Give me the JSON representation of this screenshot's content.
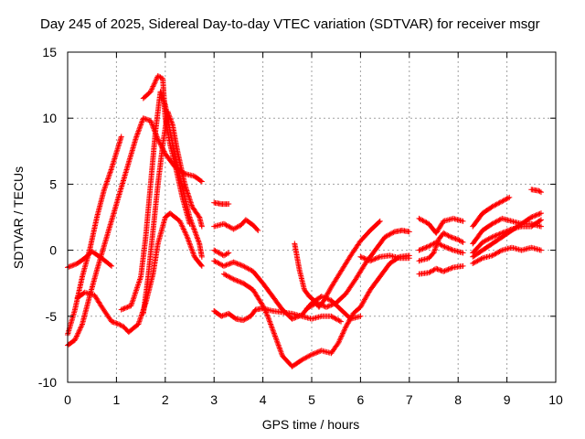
{
  "chart_data": {
    "type": "scatter",
    "title": "Day 245 of 2025, Sidereal Day-to-day VTEC variation (SDTVAR) for receiver msgr",
    "xlabel": "GPS time / hours",
    "ylabel": "SDTVAR / TECUs",
    "xlim": [
      0,
      10
    ],
    "ylim": [
      -10,
      15
    ],
    "xticks": [
      "0",
      "1",
      "2",
      "3",
      "4",
      "5",
      "6",
      "7",
      "8",
      "9",
      "10"
    ],
    "yticks": [
      "15",
      "10",
      "5",
      "0",
      "-5",
      "-10"
    ],
    "grid": true,
    "marker": "+",
    "color": "#ff0000",
    "series": [
      {
        "points": [
          [
            0.0,
            -1.3
          ],
          [
            0.2,
            -1.0
          ],
          [
            0.35,
            -0.6
          ],
          [
            0.5,
            -0.1
          ],
          [
            0.7,
            -0.6
          ],
          [
            0.9,
            -1.2
          ]
        ]
      },
      {
        "points": [
          [
            0.0,
            -6.4
          ],
          [
            0.15,
            -4.5
          ],
          [
            0.3,
            -2.0
          ],
          [
            0.45,
            0.0
          ],
          [
            0.6,
            2.5
          ],
          [
            0.75,
            4.6
          ],
          [
            0.9,
            6.2
          ],
          [
            1.05,
            8.0
          ],
          [
            1.1,
            8.6
          ]
        ]
      },
      {
        "points": [
          [
            0.0,
            -7.2
          ],
          [
            0.15,
            -6.8
          ],
          [
            0.3,
            -5.6
          ],
          [
            0.45,
            -3.5
          ],
          [
            0.6,
            -1.5
          ],
          [
            0.8,
            1.0
          ],
          [
            1.0,
            3.5
          ],
          [
            1.2,
            6.0
          ],
          [
            1.4,
            8.5
          ],
          [
            1.55,
            10.0
          ],
          [
            1.7,
            9.8
          ],
          [
            1.85,
            8.4
          ],
          [
            2.0,
            7.3
          ],
          [
            2.2,
            6.3
          ],
          [
            2.4,
            5.8
          ],
          [
            2.6,
            5.6
          ],
          [
            2.75,
            5.2
          ]
        ]
      },
      {
        "points": [
          [
            0.2,
            -3.6
          ],
          [
            0.35,
            -3.2
          ],
          [
            0.55,
            -3.4
          ],
          [
            0.7,
            -4.3
          ],
          [
            0.9,
            -5.4
          ],
          [
            1.05,
            -5.6
          ],
          [
            1.15,
            -5.8
          ],
          [
            1.25,
            -6.2
          ],
          [
            1.45,
            -5.6
          ],
          [
            1.6,
            -4.0
          ],
          [
            1.75,
            -1.8
          ],
          [
            1.85,
            0.5
          ],
          [
            2.0,
            2.5
          ],
          [
            2.1,
            2.8
          ],
          [
            2.3,
            2.2
          ],
          [
            2.45,
            1.0
          ],
          [
            2.6,
            -0.5
          ],
          [
            2.75,
            -1.2
          ]
        ]
      },
      {
        "points": [
          [
            1.1,
            -4.5
          ],
          [
            1.3,
            -4.2
          ],
          [
            1.5,
            -2.0
          ],
          [
            1.6,
            1.0
          ],
          [
            1.7,
            5.0
          ],
          [
            1.8,
            9.0
          ],
          [
            1.9,
            12.0
          ],
          [
            2.0,
            11.0
          ],
          [
            2.15,
            8.0
          ],
          [
            2.3,
            5.5
          ],
          [
            2.5,
            2.5
          ],
          [
            2.7,
            0.5
          ],
          [
            2.75,
            -0.5
          ]
        ]
      },
      {
        "points": [
          [
            1.55,
            -4.8
          ],
          [
            1.65,
            -2.0
          ],
          [
            1.75,
            1.5
          ],
          [
            1.85,
            5.0
          ],
          [
            1.95,
            8.0
          ],
          [
            2.05,
            10.5
          ],
          [
            2.15,
            9.5
          ],
          [
            2.25,
            7.5
          ],
          [
            2.4,
            5.0
          ],
          [
            2.55,
            3.3
          ],
          [
            2.7,
            2.5
          ],
          [
            2.75,
            1.8
          ]
        ]
      },
      {
        "points": [
          [
            1.55,
            11.5
          ],
          [
            1.7,
            12.0
          ],
          [
            1.85,
            13.2
          ],
          [
            1.95,
            13.0
          ],
          [
            2.0,
            10.0
          ],
          [
            2.1,
            8.0
          ],
          [
            2.2,
            6.5
          ],
          [
            2.35,
            4.0
          ],
          [
            2.5,
            2.0
          ]
        ]
      },
      {
        "points": [
          [
            3.0,
            3.6
          ],
          [
            3.15,
            3.5
          ],
          [
            3.3,
            3.5
          ]
        ]
      },
      {
        "points": [
          [
            3.0,
            1.8
          ],
          [
            3.2,
            2.0
          ],
          [
            3.4,
            1.6
          ],
          [
            3.55,
            1.9
          ],
          [
            3.65,
            2.3
          ],
          [
            3.8,
            1.9
          ],
          [
            3.9,
            1.5
          ]
        ]
      },
      {
        "points": [
          [
            3.0,
            0.0
          ],
          [
            3.2,
            -0.4
          ],
          [
            3.3,
            -0.2
          ]
        ]
      },
      {
        "points": [
          [
            3.0,
            -0.8
          ],
          [
            3.2,
            -1.2
          ],
          [
            3.4,
            -0.9
          ],
          [
            3.6,
            -1.2
          ],
          [
            3.8,
            -1.6
          ],
          [
            4.0,
            -2.5
          ],
          [
            4.2,
            -3.5
          ],
          [
            4.4,
            -4.5
          ],
          [
            4.6,
            -5.2
          ],
          [
            4.8,
            -4.9
          ],
          [
            5.0,
            -4.0
          ],
          [
            5.2,
            -3.5
          ],
          [
            5.4,
            -3.8
          ],
          [
            5.6,
            -4.5
          ],
          [
            5.8,
            -5.2
          ],
          [
            6.0,
            -5.0
          ]
        ]
      },
      {
        "points": [
          [
            3.0,
            -4.6
          ],
          [
            3.15,
            -5.0
          ],
          [
            3.3,
            -4.8
          ],
          [
            3.45,
            -5.2
          ],
          [
            3.6,
            -5.3
          ],
          [
            3.75,
            -5.0
          ],
          [
            3.85,
            -4.5
          ],
          [
            4.0,
            -4.4
          ],
          [
            4.2,
            -4.6
          ],
          [
            4.4,
            -4.7
          ],
          [
            4.6,
            -4.8
          ],
          [
            4.8,
            -5.0
          ],
          [
            5.0,
            -5.2
          ],
          [
            5.2,
            -5.0
          ],
          [
            5.4,
            -5.0
          ],
          [
            5.6,
            -5.4
          ]
        ]
      },
      {
        "points": [
          [
            3.2,
            -1.8
          ],
          [
            3.4,
            -2.2
          ],
          [
            3.6,
            -2.5
          ],
          [
            3.8,
            -3.0
          ],
          [
            4.0,
            -4.2
          ],
          [
            4.1,
            -5.0
          ],
          [
            4.25,
            -6.5
          ],
          [
            4.4,
            -8.0
          ],
          [
            4.6,
            -8.8
          ],
          [
            4.8,
            -8.3
          ],
          [
            5.0,
            -7.9
          ],
          [
            5.2,
            -7.6
          ],
          [
            5.4,
            -7.8
          ],
          [
            5.55,
            -7.0
          ],
          [
            5.7,
            -5.8
          ],
          [
            5.85,
            -4.8
          ],
          [
            6.0,
            -4.3
          ],
          [
            6.2,
            -3.0
          ],
          [
            6.4,
            -2.0
          ],
          [
            6.6,
            -1.0
          ],
          [
            6.8,
            -0.5
          ],
          [
            7.0,
            -0.4
          ]
        ]
      },
      {
        "points": [
          [
            4.65,
            0.5
          ],
          [
            4.75,
            -1.5
          ],
          [
            4.85,
            -3.0
          ],
          [
            4.95,
            -3.5
          ],
          [
            5.05,
            -3.8
          ],
          [
            5.15,
            -4.3
          ],
          [
            5.25,
            -3.8
          ],
          [
            5.4,
            -2.8
          ],
          [
            5.6,
            -1.6
          ],
          [
            5.8,
            -0.4
          ],
          [
            6.0,
            0.7
          ],
          [
            6.2,
            1.5
          ],
          [
            6.4,
            2.2
          ]
        ]
      },
      {
        "points": [
          [
            4.9,
            -4.4
          ],
          [
            5.1,
            -4.0
          ],
          [
            5.3,
            -4.3
          ],
          [
            5.5,
            -4.0
          ],
          [
            5.7,
            -3.3
          ],
          [
            5.9,
            -2.2
          ],
          [
            6.1,
            -1.0
          ],
          [
            6.3,
            0.0
          ],
          [
            6.5,
            1.0
          ],
          [
            6.7,
            1.4
          ],
          [
            6.85,
            1.5
          ],
          [
            7.0,
            1.4
          ]
        ]
      },
      {
        "points": [
          [
            6.0,
            -0.5
          ],
          [
            6.2,
            -0.8
          ],
          [
            6.4,
            -0.5
          ],
          [
            6.6,
            -0.4
          ],
          [
            6.8,
            -0.6
          ],
          [
            7.0,
            -0.6
          ]
        ]
      },
      {
        "points": [
          [
            7.2,
            2.4
          ],
          [
            7.4,
            2.0
          ],
          [
            7.55,
            1.3
          ],
          [
            7.7,
            2.2
          ],
          [
            7.9,
            2.4
          ],
          [
            8.1,
            2.2
          ]
        ]
      },
      {
        "points": [
          [
            7.2,
            0.0
          ],
          [
            7.4,
            0.3
          ],
          [
            7.55,
            0.6
          ],
          [
            7.7,
            0.3
          ],
          [
            7.9,
            0.0
          ],
          [
            8.1,
            -0.2
          ]
        ]
      },
      {
        "points": [
          [
            7.2,
            -1.8
          ],
          [
            7.4,
            -1.7
          ],
          [
            7.55,
            -1.4
          ],
          [
            7.7,
            -1.6
          ],
          [
            7.9,
            -1.3
          ],
          [
            8.1,
            -1.2
          ]
        ]
      },
      {
        "points": [
          [
            7.2,
            -0.8
          ],
          [
            7.4,
            -0.6
          ],
          [
            7.5,
            -0.2
          ],
          [
            7.6,
            0.8
          ],
          [
            7.7,
            1.3
          ],
          [
            7.85,
            1.0
          ],
          [
            8.0,
            0.8
          ],
          [
            8.1,
            0.6
          ]
        ]
      },
      {
        "points": [
          [
            8.3,
            1.8
          ],
          [
            8.5,
            2.8
          ],
          [
            8.7,
            3.3
          ],
          [
            8.9,
            3.7
          ],
          [
            9.05,
            4.0
          ]
        ]
      },
      {
        "points": [
          [
            8.3,
            0.5
          ],
          [
            8.5,
            1.5
          ],
          [
            8.7,
            2.0
          ],
          [
            8.9,
            2.4
          ],
          [
            9.1,
            2.2
          ],
          [
            9.3,
            2.0
          ],
          [
            9.5,
            2.0
          ],
          [
            9.7,
            1.8
          ]
        ]
      },
      {
        "points": [
          [
            8.3,
            -0.2
          ],
          [
            8.5,
            0.6
          ],
          [
            8.7,
            1.0
          ],
          [
            8.9,
            1.3
          ],
          [
            9.1,
            1.6
          ],
          [
            9.3,
            1.8
          ],
          [
            9.5,
            1.8
          ],
          [
            9.7,
            2.3
          ]
        ]
      },
      {
        "points": [
          [
            8.3,
            -1.0
          ],
          [
            8.5,
            -0.6
          ],
          [
            8.7,
            -0.4
          ],
          [
            8.9,
            0.0
          ],
          [
            9.1,
            0.2
          ],
          [
            9.3,
            0.0
          ],
          [
            9.5,
            0.2
          ],
          [
            9.7,
            0.0
          ]
        ]
      },
      {
        "points": [
          [
            8.3,
            -0.5
          ],
          [
            8.5,
            0.0
          ],
          [
            8.7,
            0.5
          ],
          [
            8.9,
            1.0
          ],
          [
            9.1,
            1.5
          ],
          [
            9.3,
            2.0
          ],
          [
            9.5,
            2.5
          ],
          [
            9.7,
            2.8
          ]
        ]
      },
      {
        "points": [
          [
            9.5,
            4.6
          ],
          [
            9.65,
            4.5
          ],
          [
            9.7,
            4.4
          ]
        ]
      }
    ]
  }
}
